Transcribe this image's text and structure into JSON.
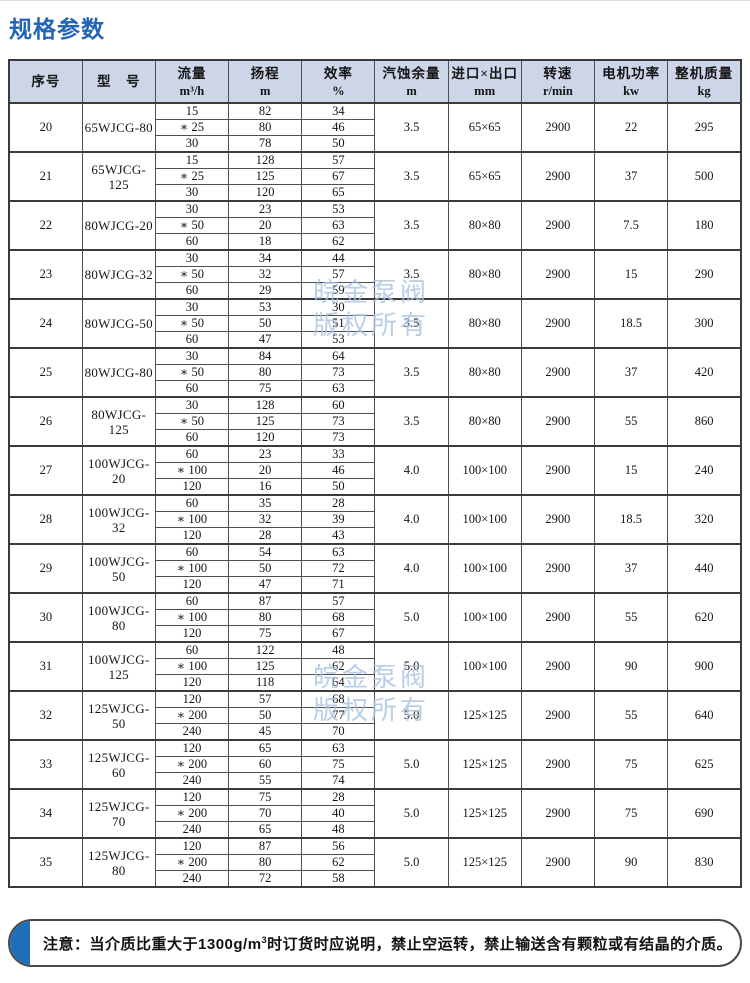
{
  "page": {
    "title": "规格参数",
    "title_color": "#2264b6",
    "header_bg": "#cdd5e9",
    "accent_blue": "#1f6fb8",
    "watermark_color": "#a9c3e2"
  },
  "watermark": {
    "line1": "皖金泵阀",
    "line2": "版权所有"
  },
  "table": {
    "headers": [
      {
        "id": "serial",
        "label": "序号",
        "unit": ""
      },
      {
        "id": "model",
        "label": "型　号",
        "unit": ""
      },
      {
        "id": "flow",
        "label": "流量",
        "unit": "m³/h"
      },
      {
        "id": "head",
        "label": "扬程",
        "unit": "m"
      },
      {
        "id": "eff",
        "label": "效率",
        "unit": "%"
      },
      {
        "id": "npsh",
        "label": "汽蚀余量",
        "unit": "m"
      },
      {
        "id": "ports",
        "label": "进口×出口",
        "unit": "mm"
      },
      {
        "id": "speed",
        "label": "转速",
        "unit": "r/min"
      },
      {
        "id": "power",
        "label": "电机功率",
        "unit": "kw"
      },
      {
        "id": "weight",
        "label": "整机质量",
        "unit": "kg"
      }
    ],
    "rows": [
      {
        "no": "20",
        "model": "65WJCG-80",
        "sub": [
          [
            "15",
            "82",
            "34"
          ],
          [
            "∗ 25",
            "80",
            "46"
          ],
          [
            "30",
            "78",
            "50"
          ]
        ],
        "npsh": "3.5",
        "ports": "65×65",
        "speed": "2900",
        "power": "22",
        "weight": "295"
      },
      {
        "no": "21",
        "model": "65WJCG-125",
        "sub": [
          [
            "15",
            "128",
            "57"
          ],
          [
            "∗ 25",
            "125",
            "67"
          ],
          [
            "30",
            "120",
            "65"
          ]
        ],
        "npsh": "3.5",
        "ports": "65×65",
        "speed": "2900",
        "power": "37",
        "weight": "500"
      },
      {
        "no": "22",
        "model": "80WJCG-20",
        "sub": [
          [
            "30",
            "23",
            "53"
          ],
          [
            "∗ 50",
            "20",
            "63"
          ],
          [
            "60",
            "18",
            "62"
          ]
        ],
        "npsh": "3.5",
        "ports": "80×80",
        "speed": "2900",
        "power": "7.5",
        "weight": "180"
      },
      {
        "no": "23",
        "model": "80WJCG-32",
        "sub": [
          [
            "30",
            "34",
            "44"
          ],
          [
            "∗ 50",
            "32",
            "57"
          ],
          [
            "60",
            "29",
            "59"
          ]
        ],
        "npsh": "3.5",
        "ports": "80×80",
        "speed": "2900",
        "power": "15",
        "weight": "290"
      },
      {
        "no": "24",
        "model": "80WJCG-50",
        "sub": [
          [
            "30",
            "53",
            "30"
          ],
          [
            "∗ 50",
            "50",
            "51"
          ],
          [
            "60",
            "47",
            "53"
          ]
        ],
        "npsh": "3.5",
        "ports": "80×80",
        "speed": "2900",
        "power": "18.5",
        "weight": "300"
      },
      {
        "no": "25",
        "model": "80WJCG-80",
        "sub": [
          [
            "30",
            "84",
            "64"
          ],
          [
            "∗ 50",
            "80",
            "73"
          ],
          [
            "60",
            "75",
            "63"
          ]
        ],
        "npsh": "3.5",
        "ports": "80×80",
        "speed": "2900",
        "power": "37",
        "weight": "420"
      },
      {
        "no": "26",
        "model": "80WJCG-125",
        "sub": [
          [
            "30",
            "128",
            "60"
          ],
          [
            "∗ 50",
            "125",
            "73"
          ],
          [
            "60",
            "120",
            "73"
          ]
        ],
        "npsh": "3.5",
        "ports": "80×80",
        "speed": "2900",
        "power": "55",
        "weight": "860"
      },
      {
        "no": "27",
        "model": "100WJCG-20",
        "sub": [
          [
            "60",
            "23",
            "33"
          ],
          [
            "∗ 100",
            "20",
            "46"
          ],
          [
            "120",
            "16",
            "50"
          ]
        ],
        "npsh": "4.0",
        "ports": "100×100",
        "speed": "2900",
        "power": "15",
        "weight": "240"
      },
      {
        "no": "28",
        "model": "100WJCG-32",
        "sub": [
          [
            "60",
            "35",
            "28"
          ],
          [
            "∗ 100",
            "32",
            "39"
          ],
          [
            "120",
            "28",
            "43"
          ]
        ],
        "npsh": "4.0",
        "ports": "100×100",
        "speed": "2900",
        "power": "18.5",
        "weight": "320"
      },
      {
        "no": "29",
        "model": "100WJCG-50",
        "sub": [
          [
            "60",
            "54",
            "63"
          ],
          [
            "∗ 100",
            "50",
            "72"
          ],
          [
            "120",
            "47",
            "71"
          ]
        ],
        "npsh": "4.0",
        "ports": "100×100",
        "speed": "2900",
        "power": "37",
        "weight": "440"
      },
      {
        "no": "30",
        "model": "100WJCG-80",
        "sub": [
          [
            "60",
            "87",
            "57"
          ],
          [
            "∗ 100",
            "80",
            "68"
          ],
          [
            "120",
            "75",
            "67"
          ]
        ],
        "npsh": "5.0",
        "ports": "100×100",
        "speed": "2900",
        "power": "55",
        "weight": "620"
      },
      {
        "no": "31",
        "model": "100WJCG-125",
        "sub": [
          [
            "60",
            "122",
            "48"
          ],
          [
            "∗ 100",
            "125",
            "62"
          ],
          [
            "120",
            "118",
            "64"
          ]
        ],
        "npsh": "5.0",
        "ports": "100×100",
        "speed": "2900",
        "power": "90",
        "weight": "900"
      },
      {
        "no": "32",
        "model": "125WJCG-50",
        "sub": [
          [
            "120",
            "57",
            "68"
          ],
          [
            "∗ 200",
            "50",
            "77"
          ],
          [
            "240",
            "45",
            "70"
          ]
        ],
        "npsh": "5.0",
        "ports": "125×125",
        "speed": "2900",
        "power": "55",
        "weight": "640"
      },
      {
        "no": "33",
        "model": "125WJCG-60",
        "sub": [
          [
            "120",
            "65",
            "63"
          ],
          [
            "∗ 200",
            "60",
            "75"
          ],
          [
            "240",
            "55",
            "74"
          ]
        ],
        "npsh": "5.0",
        "ports": "125×125",
        "speed": "2900",
        "power": "75",
        "weight": "625"
      },
      {
        "no": "34",
        "model": "125WJCG-70",
        "sub": [
          [
            "120",
            "75",
            "28"
          ],
          [
            "∗ 200",
            "70",
            "40"
          ],
          [
            "240",
            "65",
            "48"
          ]
        ],
        "npsh": "5.0",
        "ports": "125×125",
        "speed": "2900",
        "power": "75",
        "weight": "690"
      },
      {
        "no": "35",
        "model": "125WJCG-80",
        "sub": [
          [
            "120",
            "87",
            "56"
          ],
          [
            "∗ 200",
            "80",
            "62"
          ],
          [
            "240",
            "72",
            "58"
          ]
        ],
        "npsh": "5.0",
        "ports": "125×125",
        "speed": "2900",
        "power": "90",
        "weight": "830"
      }
    ]
  },
  "note": {
    "label": "注意：",
    "part1": "当介质比重大于1300g/m",
    "sup": "3",
    "part2": "时订货时应说明，禁止空运转，禁止输送含有颗粒或有结晶的介质。"
  }
}
